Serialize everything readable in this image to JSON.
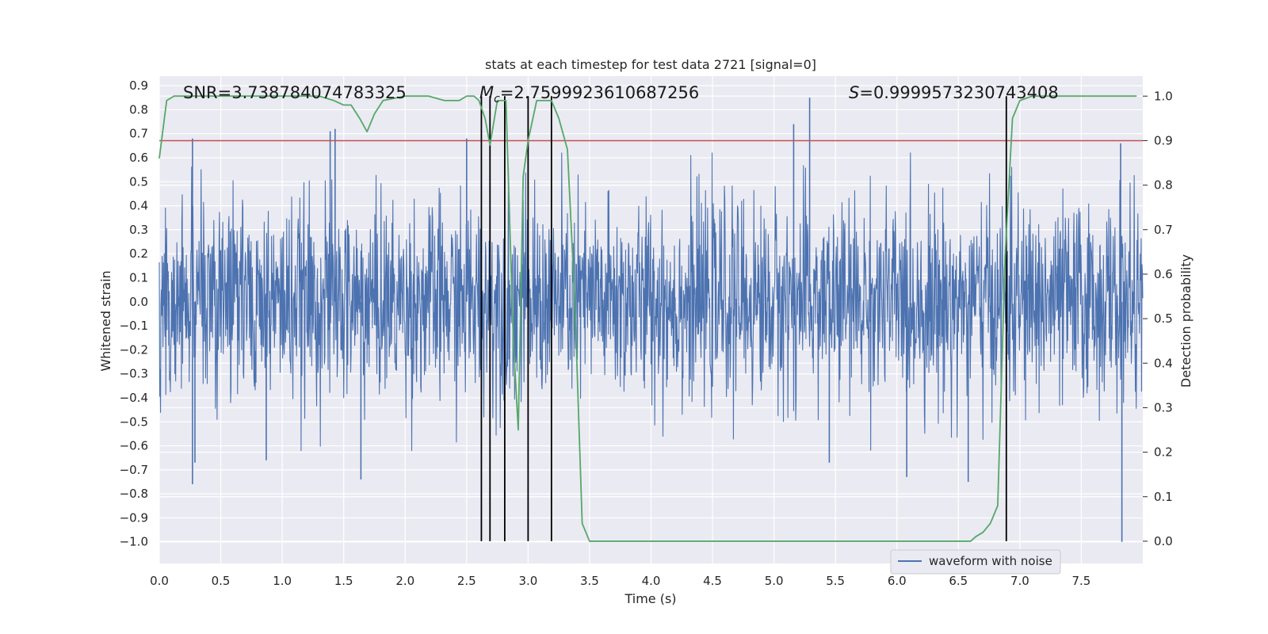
{
  "chart_data": {
    "type": "line",
    "title": "stats at each timestep for test data 2721 [signal=0]",
    "xlabel": "Time (s)",
    "ylabel_left": "Whitened strain",
    "ylabel_right": "Detection probability",
    "xlim": [
      0,
      8
    ],
    "ylim_left": [
      -1.09,
      0.94
    ],
    "ylim_right": [
      -0.05,
      1.045
    ],
    "x_ticks": [
      "0.0",
      "0.5",
      "1.0",
      "1.5",
      "2.0",
      "2.5",
      "3.0",
      "3.5",
      "4.0",
      "4.5",
      "5.0",
      "5.5",
      "6.0",
      "6.5",
      "7.0",
      "7.5"
    ],
    "y_ticks_left": [
      "0.9",
      "0.8",
      "0.7",
      "0.6",
      "0.5",
      "0.4",
      "0.3",
      "0.2",
      "0.1",
      "0.0",
      "−0.1",
      "−0.2",
      "−0.3",
      "−0.4",
      "−0.5",
      "−0.6",
      "−0.7",
      "−0.8",
      "−0.9",
      "−1.0"
    ],
    "y_ticks_right": [
      "1.0",
      "0.9",
      "0.8",
      "0.7",
      "0.6",
      "0.5",
      "0.4",
      "0.3",
      "0.2",
      "0.1",
      "0.0"
    ],
    "grid": true,
    "legend_placement": "lower-right",
    "annotations": {
      "snr": "SNR=3.738784074783325",
      "mc_symbol": "M",
      "mc_subscript": "c",
      "mc_value": "=2.7599923610687256",
      "s_symbol": "S",
      "s_value": "=0.9999573230743408"
    },
    "threshold": {
      "value": 0.9,
      "axis": "right",
      "color": "#c44e52"
    },
    "vlines": {
      "x": [
        2.62,
        2.69,
        2.81,
        3.0,
        3.19,
        6.89
      ],
      "color": "#000000"
    },
    "series": [
      {
        "name": "waveform with noise",
        "axis": "left",
        "color": "#4c72b0",
        "kind": "noise",
        "envelope_typical": 0.45,
        "notable_spikes": [
          {
            "x": 0.27,
            "y": 0.68
          },
          {
            "x": 0.27,
            "y": -0.76
          },
          {
            "x": 0.29,
            "y": -0.67
          },
          {
            "x": 1.39,
            "y": 0.71
          },
          {
            "x": 1.43,
            "y": 0.72
          },
          {
            "x": 1.64,
            "y": -0.74
          },
          {
            "x": 2.5,
            "y": 0.68
          },
          {
            "x": 5.29,
            "y": 0.85
          },
          {
            "x": 5.16,
            "y": 0.74
          },
          {
            "x": 5.45,
            "y": -0.67
          },
          {
            "x": 6.08,
            "y": -0.73
          },
          {
            "x": 6.58,
            "y": -0.75
          },
          {
            "x": 7.83,
            "y": -1.0
          },
          {
            "x": 7.82,
            "y": 0.66
          },
          {
            "x": 0.87,
            "y": -0.66
          }
        ]
      },
      {
        "name": "detection probability",
        "axis": "right",
        "color": "#55a868",
        "x": [
          0.0,
          0.06,
          0.12,
          0.3,
          1.0,
          1.3,
          1.42,
          1.5,
          1.56,
          1.63,
          1.69,
          1.75,
          1.82,
          2.0,
          2.19,
          2.32,
          2.44,
          2.5,
          2.56,
          2.6,
          2.65,
          2.69,
          2.75,
          2.82,
          2.88,
          2.92,
          2.96,
          3.0,
          3.07,
          3.13,
          3.19,
          3.25,
          3.32,
          3.38,
          3.44,
          3.5,
          4.0,
          5.0,
          5.4,
          5.6,
          5.75,
          6.0,
          6.2,
          6.5,
          6.6,
          6.64,
          6.7,
          6.76,
          6.82,
          6.88,
          6.94,
          7.0,
          7.1,
          7.5,
          7.95
        ],
        "y": [
          0.86,
          0.99,
          1.0,
          1.0,
          1.0,
          1.0,
          0.99,
          0.98,
          0.98,
          0.95,
          0.92,
          0.96,
          0.99,
          1.0,
          1.0,
          0.99,
          0.99,
          1.0,
          1.0,
          0.99,
          0.95,
          0.89,
          0.99,
          0.99,
          0.45,
          0.25,
          0.82,
          0.9,
          0.99,
          0.99,
          0.99,
          0.95,
          0.88,
          0.54,
          0.04,
          0.0,
          0.0,
          0.0,
          0.0,
          0.0,
          0.0,
          0.0,
          0.0,
          0.0,
          0.0,
          0.01,
          0.02,
          0.04,
          0.08,
          0.64,
          0.95,
          0.99,
          1.0,
          1.0,
          1.0
        ]
      }
    ]
  }
}
